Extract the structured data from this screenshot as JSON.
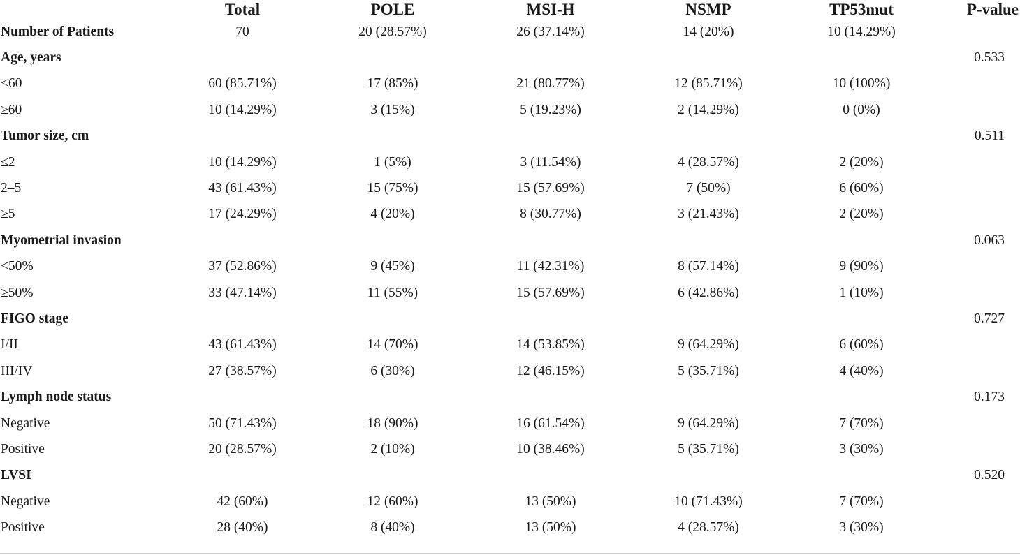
{
  "header": {
    "label": "",
    "total": "Total",
    "pole": "POLE",
    "msih": "MSI-H",
    "nsmp": "NSMP",
    "tp53mut": "TP53mut",
    "pvalue": "P-value"
  },
  "rows": [
    {
      "label": "Number of Patients",
      "bold": true,
      "total": "70",
      "pole": "20 (28.57%)",
      "msih": "26 (37.14%)",
      "nsmp": "14 (20%)",
      "tp53mut": "10 (14.29%)",
      "pvalue": ""
    },
    {
      "label": "Age, years",
      "bold": true,
      "total": "",
      "pole": "",
      "msih": "",
      "nsmp": "",
      "tp53mut": "",
      "pvalue": "0.533"
    },
    {
      "label": "<60",
      "bold": false,
      "total": "60 (85.71%)",
      "pole": "17 (85%)",
      "msih": "21 (80.77%)",
      "nsmp": "12 (85.71%)",
      "tp53mut": "10 (100%)",
      "pvalue": ""
    },
    {
      "label": "≥60",
      "bold": false,
      "total": "10 (14.29%)",
      "pole": "3 (15%)",
      "msih": "5 (19.23%)",
      "nsmp": "2 (14.29%)",
      "tp53mut": "0 (0%)",
      "pvalue": ""
    },
    {
      "label": "Tumor size, cm",
      "bold": true,
      "total": "",
      "pole": "",
      "msih": "",
      "nsmp": "",
      "tp53mut": "",
      "pvalue": "0.511"
    },
    {
      "label": "≤2",
      "bold": false,
      "total": "10 (14.29%)",
      "pole": "1 (5%)",
      "msih": "3 (11.54%)",
      "nsmp": "4 (28.57%)",
      "tp53mut": "2 (20%)",
      "pvalue": ""
    },
    {
      "label": "2–5",
      "bold": false,
      "total": "43 (61.43%)",
      "pole": "15 (75%)",
      "msih": "15 (57.69%)",
      "nsmp": "7 (50%)",
      "tp53mut": "6 (60%)",
      "pvalue": ""
    },
    {
      "label": "≥5",
      "bold": false,
      "total": "17 (24.29%)",
      "pole": "4 (20%)",
      "msih": "8 (30.77%)",
      "nsmp": "3 (21.43%)",
      "tp53mut": "2 (20%)",
      "pvalue": ""
    },
    {
      "label": "Myometrial invasion",
      "bold": true,
      "total": "",
      "pole": "",
      "msih": "",
      "nsmp": "",
      "tp53mut": "",
      "pvalue": "0.063"
    },
    {
      "label": "<50%",
      "bold": false,
      "total": "37 (52.86%)",
      "pole": "9 (45%)",
      "msih": "11 (42.31%)",
      "nsmp": "8 (57.14%)",
      "tp53mut": "9 (90%)",
      "pvalue": ""
    },
    {
      "label": "≥50%",
      "bold": false,
      "total": "33 (47.14%)",
      "pole": "11 (55%)",
      "msih": "15 (57.69%)",
      "nsmp": "6 (42.86%)",
      "tp53mut": "1 (10%)",
      "pvalue": ""
    },
    {
      "label": "FIGO stage",
      "bold": true,
      "total": "",
      "pole": "",
      "msih": "",
      "nsmp": "",
      "tp53mut": "",
      "pvalue": "0.727"
    },
    {
      "label": "I/II",
      "bold": false,
      "total": "43 (61.43%)",
      "pole": "14 (70%)",
      "msih": "14 (53.85%)",
      "nsmp": "9 (64.29%)",
      "tp53mut": "6 (60%)",
      "pvalue": ""
    },
    {
      "label": "III/IV",
      "bold": false,
      "total": "27 (38.57%)",
      "pole": "6 (30%)",
      "msih": "12 (46.15%)",
      "nsmp": "5 (35.71%)",
      "tp53mut": "4 (40%)",
      "pvalue": ""
    },
    {
      "label": "Lymph node status",
      "bold": true,
      "total": "",
      "pole": "",
      "msih": "",
      "nsmp": "",
      "tp53mut": "",
      "pvalue": "0.173"
    },
    {
      "label": "Negative",
      "bold": false,
      "total": "50 (71.43%)",
      "pole": "18 (90%)",
      "msih": "16 (61.54%)",
      "nsmp": "9 (64.29%)",
      "tp53mut": "7 (70%)",
      "pvalue": ""
    },
    {
      "label": "Positive",
      "bold": false,
      "total": "20 (28.57%)",
      "pole": "2 (10%)",
      "msih": "10 (38.46%)",
      "nsmp": "5 (35.71%)",
      "tp53mut": "3 (30%)",
      "pvalue": ""
    },
    {
      "label": "LVSI",
      "bold": true,
      "total": "",
      "pole": "",
      "msih": "",
      "nsmp": "",
      "tp53mut": "",
      "pvalue": "0.520"
    },
    {
      "label": "Negative",
      "bold": false,
      "total": "42 (60%)",
      "pole": "12 (60%)",
      "msih": "13 (50%)",
      "nsmp": "10 (71.43%)",
      "tp53mut": "7 (70%)",
      "pvalue": ""
    },
    {
      "label": "Positive",
      "bold": false,
      "total": "28 (40%)",
      "pole": "8 (40%)",
      "msih": "13 (50%)",
      "nsmp": "4 (28.57%)",
      "tp53mut": "3 (30%)",
      "pvalue": ""
    }
  ]
}
